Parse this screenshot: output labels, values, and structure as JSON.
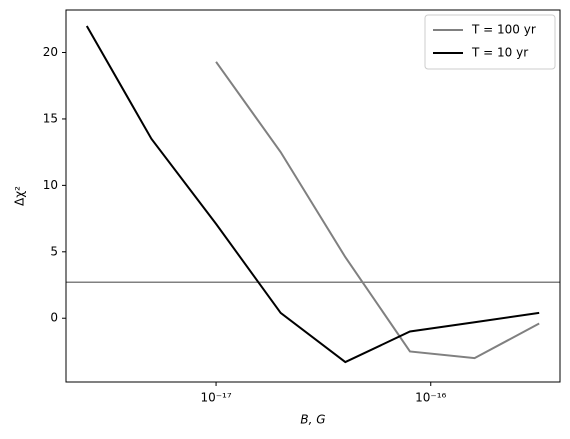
{
  "chart_data": {
    "type": "line",
    "xlabel": "B, G",
    "ylabel": "Δχ²",
    "xscale": "log",
    "xlim": [
      2e-18,
      4e-16
    ],
    "ylim": [
      -4.8,
      23.2
    ],
    "xticks": [
      {
        "value": 1e-17,
        "label": "10⁻¹⁷"
      },
      {
        "value": 1e-16,
        "label": "10⁻¹⁶"
      }
    ],
    "yticks": [
      0,
      5,
      10,
      15,
      20
    ],
    "hlines": [
      {
        "value": 2.71,
        "color": "#808080"
      }
    ],
    "legend": "upper right",
    "series": [
      {
        "name": "T = 100 yr",
        "color": "#808080",
        "x": [
          1e-17,
          2e-17,
          4e-17,
          8e-17,
          1.6e-16,
          3.2e-16
        ],
        "values": [
          19.3,
          12.5,
          4.6,
          -2.5,
          -3.0,
          -0.4
        ]
      },
      {
        "name": "T = 10 yr",
        "color": "#000000",
        "x": [
          2.5e-18,
          5e-18,
          1e-17,
          2e-17,
          4e-17,
          8e-17,
          1.6e-16,
          3.2e-16
        ],
        "values": [
          22.0,
          13.5,
          7.1,
          0.4,
          -3.3,
          -1.0,
          -0.3,
          0.4
        ]
      }
    ]
  }
}
